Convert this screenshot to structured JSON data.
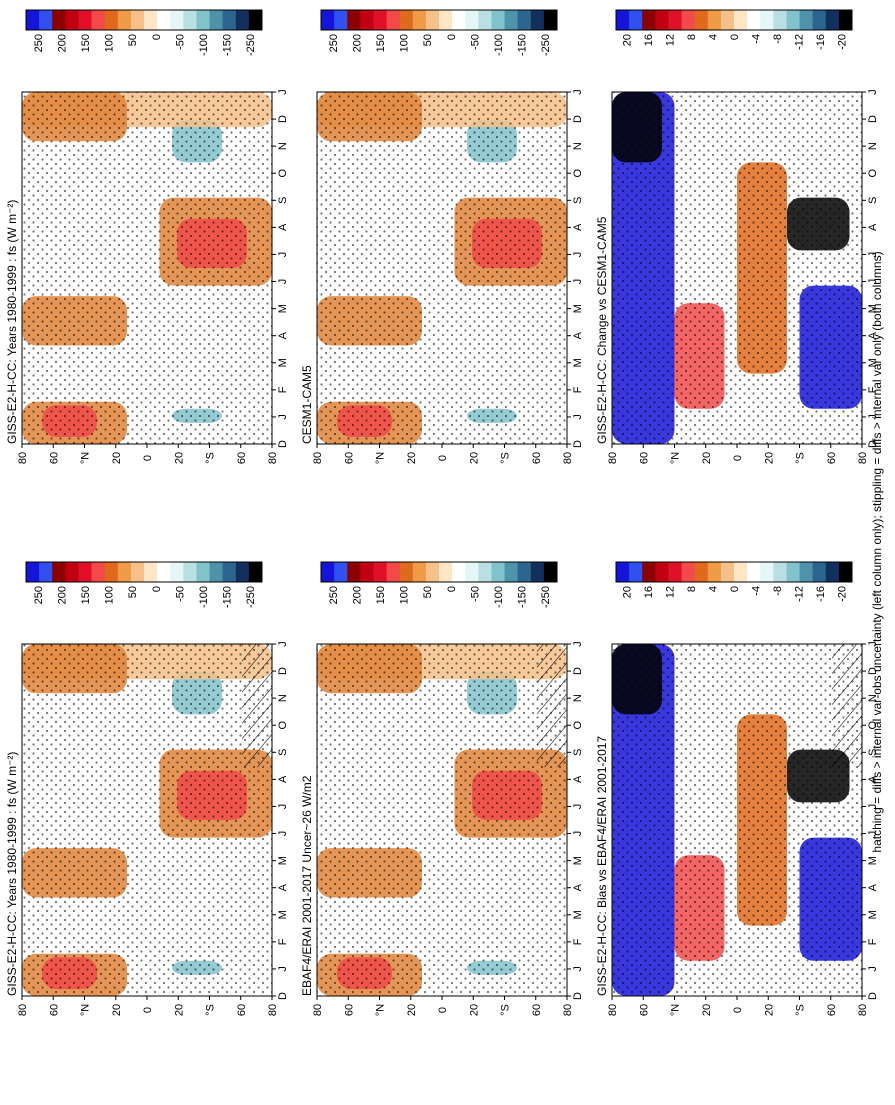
{
  "figure": {
    "footnote": "hatching = diffs > internal var-obs uncertainty (left column only); stippling = diffs > internal var only (both columns)"
  },
  "chart_data": [
    {
      "type": "heatmap",
      "title": "GISS-E2-H-CC: Years 1980-1999 : fs (W m⁻²)",
      "xlabel": "",
      "ylabel": "",
      "x_ticks": [
        "D",
        "J",
        "F",
        "M",
        "A",
        "M",
        "J",
        "J",
        "A",
        "S",
        "O",
        "N",
        "D",
        "J"
      ],
      "y_ticks": [
        "80",
        "60",
        "°N",
        "20",
        "0",
        "20",
        "°S",
        "60",
        "80"
      ],
      "colorbar": {
        "labels": [
          "250",
          "200",
          "150",
          "100",
          "50",
          "0",
          "-50",
          "-100",
          "-150",
          "-250"
        ]
      },
      "hatching": "present",
      "stippling": "present",
      "pattern": "climatology"
    },
    {
      "type": "heatmap",
      "title": "GISS-E2-H-CC: Years 1980-1999 : fs (W m⁻²)",
      "xlabel": "",
      "ylabel": "",
      "x_ticks": [
        "D",
        "J",
        "F",
        "M",
        "A",
        "M",
        "J",
        "J",
        "A",
        "S",
        "O",
        "N",
        "D",
        "J"
      ],
      "y_ticks": [
        "80",
        "60",
        "°N",
        "20",
        "0",
        "20",
        "°S",
        "60",
        "80"
      ],
      "colorbar": {
        "labels": [
          "250",
          "200",
          "150",
          "100",
          "50",
          "0",
          "-50",
          "-100",
          "-150",
          "-250"
        ]
      },
      "stippling": "present",
      "pattern": "climatology"
    },
    {
      "type": "heatmap",
      "title": "EBAF4/ERAI 2001-2017 Uncer~26 W/m2",
      "xlabel": "",
      "ylabel": "",
      "x_ticks": [
        "D",
        "J",
        "F",
        "M",
        "A",
        "M",
        "J",
        "J",
        "A",
        "S",
        "O",
        "N",
        "D",
        "J"
      ],
      "y_ticks": [
        "80",
        "60",
        "°N",
        "20",
        "0",
        "20",
        "°S",
        "60",
        "80"
      ],
      "colorbar": {
        "labels": [
          "250",
          "200",
          "150",
          "100",
          "50",
          "0",
          "-50",
          "-100",
          "-150",
          "-250"
        ]
      },
      "hatching": "present",
      "stippling": "present",
      "pattern": "climatology"
    },
    {
      "type": "heatmap",
      "title": "CESM1-CAM5",
      "xlabel": "",
      "ylabel": "",
      "x_ticks": [
        "D",
        "J",
        "F",
        "M",
        "A",
        "M",
        "J",
        "J",
        "A",
        "S",
        "O",
        "N",
        "D",
        "J"
      ],
      "y_ticks": [
        "80",
        "60",
        "°N",
        "20",
        "0",
        "20",
        "°S",
        "60",
        "80"
      ],
      "colorbar": {
        "labels": [
          "250",
          "200",
          "150",
          "100",
          "50",
          "0",
          "-50",
          "-100",
          "-150",
          "-250"
        ]
      },
      "stippling": "present",
      "pattern": "climatology"
    },
    {
      "type": "heatmap",
      "title": "GISS-E2-H-CC: Bias vs EBAF4/ERAI 2001-2017",
      "xlabel": "",
      "ylabel": "",
      "x_ticks": [
        "D",
        "J",
        "F",
        "M",
        "A",
        "M",
        "J",
        "J",
        "A",
        "S",
        "O",
        "N",
        "D",
        "J"
      ],
      "y_ticks": [
        "80",
        "60",
        "°N",
        "20",
        "0",
        "20",
        "°S",
        "60",
        "80"
      ],
      "colorbar": {
        "labels": [
          "20",
          "16",
          "12",
          "8",
          "4",
          "0",
          "-4",
          "-8",
          "-12",
          "-16",
          "-20"
        ]
      },
      "hatching": "present",
      "stippling": "present",
      "pattern": "difference"
    },
    {
      "type": "heatmap",
      "title": "GISS-E2-H-CC: Change vs CESM1-CAM5",
      "xlabel": "",
      "ylabel": "",
      "x_ticks": [
        "D",
        "J",
        "F",
        "M",
        "A",
        "M",
        "J",
        "J",
        "A",
        "S",
        "O",
        "N",
        "D",
        "J"
      ],
      "y_ticks": [
        "80",
        "60",
        "°N",
        "20",
        "0",
        "20",
        "°S",
        "60",
        "80"
      ],
      "colorbar": {
        "labels": [
          "20",
          "16",
          "12",
          "8",
          "4",
          "0",
          "-4",
          "-8",
          "-12",
          "-16",
          "-20"
        ]
      },
      "stippling": "present",
      "pattern": "difference"
    }
  ]
}
